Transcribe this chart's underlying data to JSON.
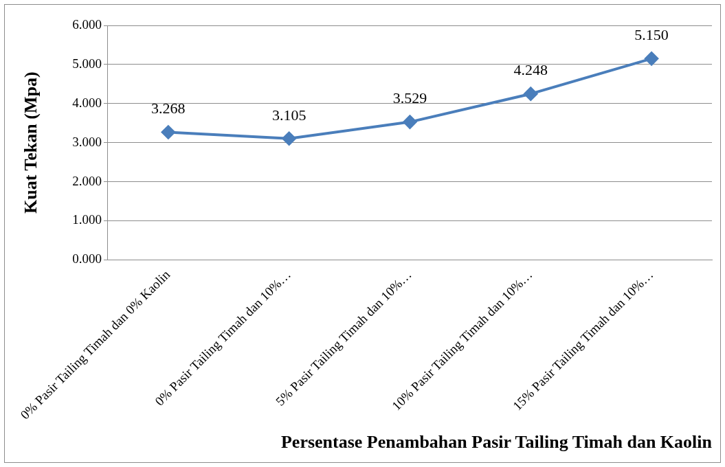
{
  "chart_data": {
    "type": "line",
    "categories": [
      "0% Pasir Tailing Timah dan 0% Kaolin",
      "0% Pasir Tailing Timah dan 10%…",
      "5% Pasir Tailing Timah dan 10%…",
      "10% Pasir Tailing Timah dan 10%…",
      "15% Pasir Tailing Timah dan 10%…"
    ],
    "series": [
      {
        "color": "#4a7ebb",
        "values": [
          3.268,
          3.105,
          3.529,
          4.248,
          5.15
        ],
        "value_labels": [
          "3.268",
          "3.105",
          "3.529",
          "4.248",
          "5.150"
        ]
      }
    ],
    "xlabel": "Persentase Penambahan Pasir Tailing Timah dan Kaolin",
    "ylabel": "Kuat Tekan (Mpa)",
    "ylim": [
      0,
      6
    ],
    "yticks": [
      {
        "value": 0,
        "label": "0.000"
      },
      {
        "value": 1,
        "label": "1.000"
      },
      {
        "value": 2,
        "label": "2.000"
      },
      {
        "value": 3,
        "label": "3.000"
      },
      {
        "value": 4,
        "label": "4.000"
      },
      {
        "value": 5,
        "label": "5.000"
      },
      {
        "value": 6,
        "label": "6.000"
      }
    ],
    "grid": "y",
    "legend": false,
    "marker": "diamond",
    "line_style": "solid"
  }
}
